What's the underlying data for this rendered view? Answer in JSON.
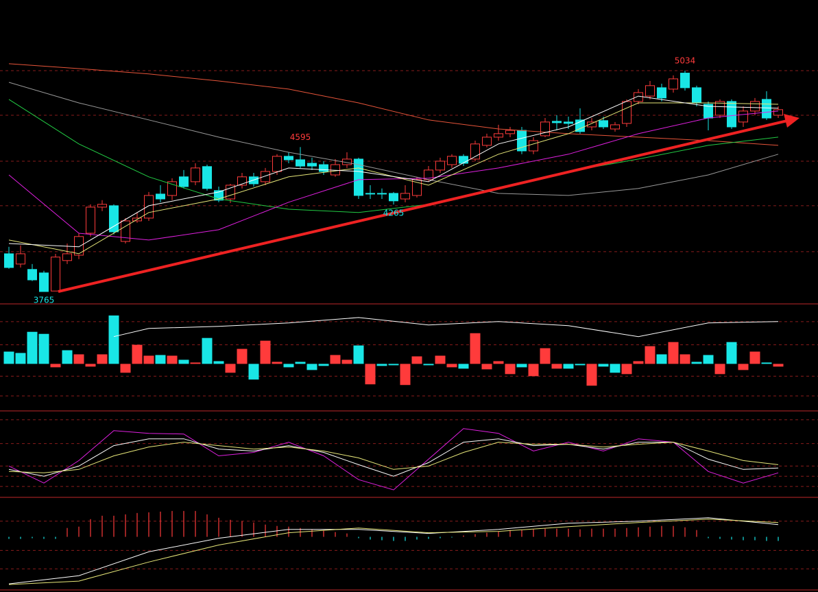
{
  "chart_data": [
    {
      "type": "candlestick",
      "ylim": [
        3698,
        5440
      ],
      "yticks": [
        3994,
        4258,
        4514,
        4778,
        5034
      ],
      "up_color": "#ff3b3b",
      "down_color": "#19e6e6",
      "open": [
        3982,
        3923,
        3892,
        3872,
        3768,
        3943,
        3974,
        4100,
        4250,
        4258,
        4053,
        4171,
        4187,
        4325,
        4317,
        4424,
        4396,
        4483,
        4345,
        4297,
        4376,
        4424,
        4396,
        4455,
        4542,
        4522,
        4502,
        4494,
        4435,
        4494,
        4526,
        4329,
        4329,
        4329,
        4297,
        4317,
        4408,
        4463,
        4494,
        4542,
        4526,
        4605,
        4652,
        4672,
        4691,
        4573,
        4660,
        4743,
        4739,
        4751,
        4711,
        4747,
        4699,
        4731,
        4857,
        4888,
        4936,
        4928,
        5020,
        4936,
        4841,
        4778,
        4857,
        4739,
        4802,
        4869,
        4778
      ],
      "high": [
        4022,
        4030,
        3923,
        3884,
        3982,
        4041,
        4100,
        4266,
        4290,
        4266,
        4187,
        4219,
        4337,
        4376,
        4416,
        4463,
        4502,
        4494,
        4368,
        4384,
        4447,
        4447,
        4475,
        4554,
        4565,
        4595,
        4534,
        4514,
        4526,
        4565,
        4534,
        4376,
        4357,
        4337,
        4376,
        4424,
        4486,
        4534,
        4554,
        4554,
        4632,
        4672,
        4723,
        4711,
        4711,
        4652,
        4762,
        4778,
        4770,
        4818,
        4762,
        4770,
        4739,
        4869,
        4928,
        4975,
        4959,
        5007,
        5034,
        4948,
        4857,
        4869,
        4869,
        4829,
        4877,
        4916,
        4829
      ],
      "low": [
        3896,
        3903,
        3825,
        3765,
        3768,
        3923,
        3951,
        4081,
        4227,
        4093,
        4041,
        4160,
        4171,
        4278,
        4290,
        4357,
        4376,
        4345,
        4278,
        4274,
        4357,
        4368,
        4376,
        4435,
        4502,
        4475,
        4463,
        4435,
        4424,
        4475,
        4297,
        4297,
        4297,
        4265,
        4278,
        4305,
        4396,
        4447,
        4475,
        4486,
        4514,
        4593,
        4632,
        4652,
        4554,
        4554,
        4652,
        4691,
        4699,
        4672,
        4691,
        4699,
        4684,
        4711,
        4841,
        4869,
        4857,
        4908,
        4920,
        4829,
        4691,
        4762,
        4699,
        4711,
        4778,
        4751,
        4762
      ],
      "close": [
        3903,
        3982,
        3832,
        3765,
        3963,
        3982,
        4081,
        4250,
        4266,
        4108,
        4171,
        4187,
        4317,
        4297,
        4396,
        4368,
        4475,
        4357,
        4290,
        4376,
        4424,
        4384,
        4455,
        4542,
        4522,
        4486,
        4486,
        4455,
        4494,
        4526,
        4317,
        4325,
        4325,
        4286,
        4329,
        4408,
        4463,
        4514,
        4542,
        4502,
        4613,
        4652,
        4672,
        4691,
        4573,
        4632,
        4739,
        4735,
        4731,
        4684,
        4739,
        4711,
        4723,
        4857,
        4908,
        4948,
        4877,
        4987,
        4936,
        4849,
        4762,
        4857,
        4711,
        4802,
        4857,
        4762,
        4810
      ],
      "series": [
        {
          "color": "#e8553a",
          "x": [
            0,
            6,
            12,
            18,
            24,
            30,
            36,
            42,
            48,
            54,
            60,
            66
          ],
          "values": [
            5074,
            5046,
            5015,
            4975,
            4928,
            4849,
            4751,
            4699,
            4672,
            4652,
            4632,
            4605
          ]
        },
        {
          "color": "#9a9a9a",
          "x": [
            0,
            6,
            12,
            18,
            24,
            30,
            36,
            42,
            48,
            54,
            60,
            66
          ],
          "values": [
            4967,
            4849,
            4751,
            4652,
            4565,
            4494,
            4408,
            4329,
            4317,
            4357,
            4435,
            4554
          ]
        },
        {
          "color": "#22cc44",
          "x": [
            0,
            6,
            12,
            18,
            24,
            30,
            36,
            42,
            48,
            54,
            60,
            66
          ],
          "values": [
            4869,
            4613,
            4424,
            4297,
            4238,
            4219,
            4266,
            4357,
            4455,
            4526,
            4605,
            4652
          ]
        },
        {
          "color": "#e020e0",
          "x": [
            0,
            6,
            12,
            18,
            24,
            30,
            36,
            42,
            48,
            54,
            60,
            66
          ],
          "values": [
            4435,
            4100,
            4061,
            4120,
            4278,
            4408,
            4416,
            4475,
            4554,
            4672,
            4762,
            4802
          ]
        },
        {
          "color": "#e8e87a",
          "x": [
            0,
            6,
            12,
            18,
            24,
            30,
            36,
            42,
            48,
            54,
            60,
            66
          ],
          "values": [
            4061,
            3982,
            4219,
            4297,
            4424,
            4475,
            4376,
            4554,
            4672,
            4849,
            4849,
            4841
          ]
        },
        {
          "color": "#ffffff",
          "x": [
            0,
            6,
            12,
            18,
            24,
            30,
            36,
            42,
            48,
            54,
            60,
            66
          ],
          "values": [
            4041,
            4022,
            4258,
            4337,
            4475,
            4455,
            4396,
            4613,
            4711,
            4888,
            4829,
            4818
          ]
        }
      ],
      "annotations": [
        5034,
        4595,
        3765,
        4265
      ]
    },
    {
      "type": "bar",
      "ylim": [
        -68,
        87
      ],
      "yticks": [
        62,
        28,
        -18,
        -47
      ],
      "values": [
        18,
        16,
        47,
        44,
        -5,
        20,
        14,
        -4,
        14,
        71,
        -13,
        28,
        12,
        13,
        12,
        6,
        2,
        38,
        4,
        -13,
        22,
        -23,
        34,
        3,
        -5,
        3,
        -9,
        -3,
        13,
        6,
        27,
        -30,
        -3,
        -2,
        -31,
        11,
        -2,
        12,
        -5,
        -7,
        45,
        -8,
        4,
        -15,
        -5,
        -18,
        23,
        -7,
        -7,
        -2,
        -32,
        -4,
        -13,
        -15,
        4,
        26,
        14,
        32,
        14,
        3,
        13,
        -15,
        32,
        -9,
        18,
        2,
        -4
      ],
      "colors": [
        "#19e6e6",
        "#19e6e6",
        "#19e6e6",
        "#19e6e6",
        "#ff3b3b",
        "#19e6e6",
        "#ff3b3b",
        "#ff3b3b",
        "#ff3b3b",
        "#19e6e6",
        "#ff3b3b",
        "#ff3b3b",
        "#ff3b3b",
        "#19e6e6",
        "#ff3b3b",
        "#19e6e6",
        "#ff3b3b",
        "#19e6e6",
        "#19e6e6",
        "#ff3b3b",
        "#ff3b3b",
        "#19e6e6",
        "#ff3b3b",
        "#ff3b3b",
        "#19e6e6",
        "#19e6e6",
        "#19e6e6",
        "#19e6e6",
        "#ff3b3b",
        "#ff3b3b",
        "#19e6e6",
        "#ff3b3b",
        "#19e6e6",
        "#19e6e6",
        "#ff3b3b",
        "#ff3b3b",
        "#19e6e6",
        "#ff3b3b",
        "#ff3b3b",
        "#19e6e6",
        "#ff3b3b",
        "#ff3b3b",
        "#ff3b3b",
        "#ff3b3b",
        "#19e6e6",
        "#ff3b3b",
        "#ff3b3b",
        "#ff3b3b",
        "#19e6e6",
        "#19e6e6",
        "#ff3b3b",
        "#19e6e6",
        "#19e6e6",
        "#ff3b3b",
        "#ff3b3b",
        "#ff3b3b",
        "#19e6e6",
        "#ff3b3b",
        "#ff3b3b",
        "#19e6e6",
        "#19e6e6",
        "#ff3b3b",
        "#19e6e6",
        "#ff3b3b",
        "#ff3b3b",
        "#19e6e6",
        "#ff3b3b"
      ],
      "series": [
        {
          "color": "#ffffff",
          "x": [
            9,
            12,
            18,
            24,
            30,
            36,
            42,
            48,
            54,
            60,
            66
          ],
          "values": [
            40,
            52,
            55,
            60,
            68,
            57,
            62,
            56,
            40,
            60,
            62
          ]
        }
      ]
    },
    {
      "type": "line",
      "ylim": [
        -5,
        120
      ],
      "yticks": [
        108,
        73,
        40,
        25,
        10
      ],
      "series": [
        {
          "color": "#e020e0",
          "x": [
            0,
            3,
            6,
            9,
            12,
            15,
            18,
            21,
            24,
            27,
            30,
            33,
            36,
            39,
            42,
            45,
            48,
            51,
            54,
            57,
            60,
            63,
            66
          ],
          "values": [
            40,
            15,
            48,
            92,
            88,
            87,
            55,
            60,
            75,
            55,
            20,
            5,
            50,
            95,
            88,
            62,
            75,
            62,
            80,
            75,
            32,
            15,
            30
          ]
        },
        {
          "color": "#ffffff",
          "x": [
            0,
            3,
            6,
            9,
            12,
            15,
            18,
            21,
            24,
            27,
            30,
            33,
            36,
            39,
            42,
            45,
            48,
            51,
            54,
            57,
            60,
            63,
            66
          ],
          "values": [
            35,
            25,
            40,
            70,
            80,
            80,
            65,
            62,
            70,
            60,
            42,
            25,
            45,
            75,
            80,
            70,
            72,
            65,
            75,
            75,
            50,
            35,
            37
          ]
        },
        {
          "color": "#e8e87a",
          "x": [
            0,
            3,
            6,
            9,
            12,
            15,
            18,
            21,
            24,
            27,
            30,
            33,
            36,
            39,
            42,
            45,
            48,
            51,
            54,
            57,
            60,
            63,
            66
          ],
          "values": [
            32,
            30,
            35,
            55,
            68,
            75,
            70,
            65,
            68,
            62,
            52,
            35,
            40,
            60,
            75,
            72,
            72,
            68,
            72,
            75,
            62,
            48,
            42
          ]
        }
      ]
    },
    {
      "type": "bar",
      "ylim": [
        -77,
        56
      ],
      "yticks": [
        23,
        -20,
        -47
      ],
      "up_color": "#ff3b3b",
      "down_color": "#19e6e6",
      "values": [
        -3,
        -3,
        -2,
        -3,
        -3,
        13,
        15,
        26,
        31,
        31,
        33,
        35,
        36,
        37,
        38,
        38,
        38,
        33,
        28,
        25,
        23,
        21,
        18,
        16,
        15,
        13,
        11,
        9,
        7,
        5,
        -2,
        -4,
        -5,
        -6,
        -6,
        -4,
        -3,
        -2,
        -1,
        2,
        4,
        6,
        8,
        10,
        10,
        11,
        12,
        12,
        12,
        11,
        12,
        12,
        12,
        13,
        14,
        15,
        16,
        16,
        14,
        10,
        -2,
        -3,
        -4,
        -5,
        -5,
        -6,
        -6
      ],
      "series": [
        {
          "color": "#ffffff",
          "x": [
            0,
            6,
            12,
            18,
            24,
            30,
            36,
            42,
            48,
            54,
            60,
            66
          ],
          "values": [
            -69,
            -57,
            -22,
            -2,
            11,
            11,
            5,
            11,
            20,
            23,
            28,
            18
          ]
        },
        {
          "color": "#e8e87a",
          "x": [
            0,
            6,
            12,
            18,
            24,
            30,
            36,
            42,
            48,
            54,
            60,
            66
          ],
          "values": [
            -70,
            -65,
            -37,
            -12,
            6,
            13,
            6,
            8,
            15,
            21,
            26,
            21
          ]
        }
      ]
    }
  ]
}
